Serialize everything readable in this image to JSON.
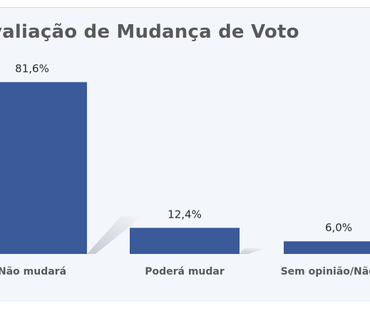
{
  "chart_data": {
    "type": "bar",
    "title": "valiação de Mudança de Voto",
    "categories": [
      "Não mudará",
      "Poderá mudar",
      "Sem opinião/Não res"
    ],
    "values": [
      81.6,
      12.4,
      6.0
    ],
    "data_labels": [
      "81,6%",
      "12,4%",
      "6,0%"
    ],
    "ylim": [
      0,
      100
    ],
    "grid": false,
    "legend": "none",
    "colors": {
      "bar": "#3b5a9a",
      "background": "#f3f6fb",
      "shadow": "#bfc4cc"
    }
  }
}
